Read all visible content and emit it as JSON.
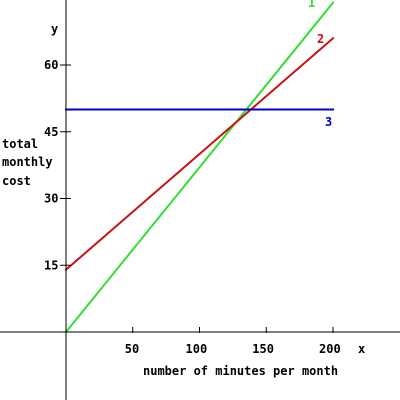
{
  "chart_data": {
    "type": "line",
    "title": "",
    "xlabel": "number of minutes per month",
    "ylabel_lines": [
      "total",
      "monthly",
      "cost"
    ],
    "x_axis_symbol": "x",
    "y_axis_symbol": "y",
    "xlim": [
      0,
      200
    ],
    "ylim": [
      0,
      67
    ],
    "x_ticks": [
      50,
      100,
      150,
      200
    ],
    "y_ticks": [
      15,
      30,
      45,
      60
    ],
    "grid": false,
    "series": [
      {
        "name": "1",
        "color": "#33dd33",
        "x": [
          0,
          200
        ],
        "y": [
          0,
          74
        ]
      },
      {
        "name": "2",
        "color": "#cc1111",
        "x": [
          0,
          200
        ],
        "y": [
          14,
          66
        ]
      },
      {
        "name": "3",
        "color": "#0000cc",
        "x": [
          0,
          200
        ],
        "y": [
          50,
          50
        ]
      }
    ]
  },
  "colors": {
    "axis": "#000000",
    "background": "#ffffff"
  }
}
